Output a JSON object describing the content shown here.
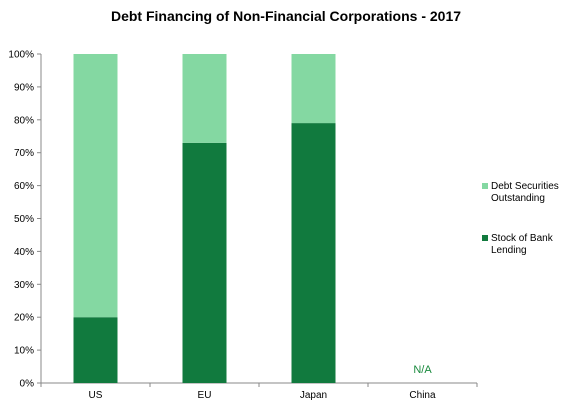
{
  "chart_data": {
    "type": "bar",
    "stacked": true,
    "title": "Debt Financing of Non-Financial Corporations  - 2017",
    "xlabel": "",
    "ylabel": "",
    "ylim": [
      0,
      100
    ],
    "y_ticks": [
      "0%",
      "10%",
      "20%",
      "30%",
      "40%",
      "50%",
      "60%",
      "70%",
      "80%",
      "90%",
      "100%"
    ],
    "categories": [
      "US",
      "EU",
      "Japan",
      "China"
    ],
    "series": [
      {
        "name": "Stock of Bank Lending",
        "color": "#117a3e",
        "values": [
          20,
          73,
          79,
          null
        ]
      },
      {
        "name": "Debt Securities Outstanding",
        "color": "#84d8a2",
        "values": [
          80,
          27,
          21,
          null
        ]
      }
    ],
    "annotations": [
      {
        "category": "China",
        "text": "N/A",
        "color": "#1a8a3e"
      }
    ],
    "legend": {
      "placement": "right",
      "entries": [
        {
          "line1": "Debt Securities",
          "line2": "Outstanding",
          "color": "#84d8a2"
        },
        {
          "line1": "Stock of Bank",
          "line2": "Lending",
          "color": "#117a3e"
        }
      ]
    },
    "grid": false
  }
}
